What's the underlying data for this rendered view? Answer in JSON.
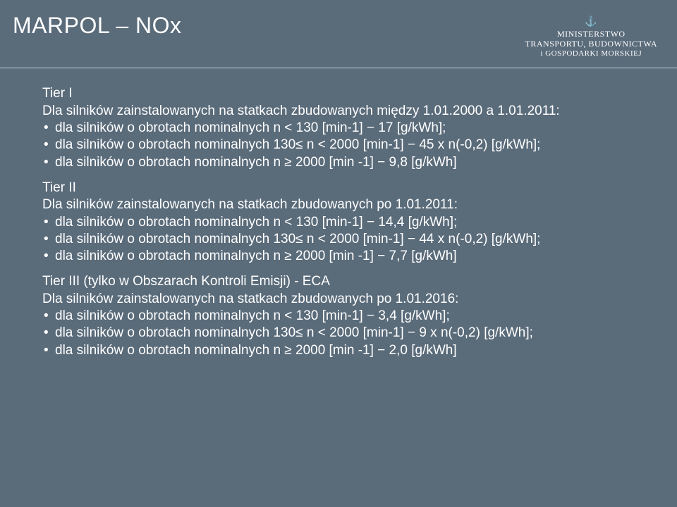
{
  "header": {
    "title": "MARPOL – NOx",
    "ministry_line1": "MINISTERSTWO",
    "ministry_line2": "TRANSPORTU, BUDOWNICTWA",
    "ministry_line3": "i GOSPODARKI MORSKIEJ"
  },
  "tier1": {
    "head": "Tier I",
    "sub": "Dla silników zainstalowanych na statkach zbudowanych między 1.01.2000 a 1.01.2011:",
    "bullets": [
      "dla silników o obrotach nominalnych n < 130 [min-1] − 17 [g/kWh];",
      "dla silników o obrotach nominalnych 130≤ n < 2000 [min-1] − 45 x n(-0,2) [g/kWh];",
      "dla silników o obrotach nominalnych n ≥ 2000 [min -1] − 9,8 [g/kWh]"
    ]
  },
  "tier2": {
    "head": "Tier II",
    "sub": "Dla silników zainstalowanych na statkach zbudowanych po 1.01.2011:",
    "bullets": [
      "dla silników o obrotach nominalnych n < 130 [min-1] − 14,4 [g/kWh];",
      "dla silników o obrotach nominalnych 130≤ n < 2000 [min-1] − 44 x n(-0,2) [g/kWh];",
      "dla silników o obrotach nominalnych n ≥ 2000 [min -1] − 7,7 [g/kWh]"
    ]
  },
  "tier3": {
    "head": "Tier III (tylko w Obszarach Kontroli Emisji) - ECA",
    "sub": "Dla silników zainstalowanych na statkach zbudowanych po 1.01.2016:",
    "bullets": [
      "dla silników o obrotach nominalnych n < 130 [min-1] − 3,4 [g/kWh];",
      "dla silników o obrotach nominalnych 130≤ n < 2000 [min-1] − 9 x n(-0,2) [g/kWh];",
      "dla silników o obrotach nominalnych n ≥ 2000 [min -1] − 2,0 [g/kWh]"
    ]
  }
}
